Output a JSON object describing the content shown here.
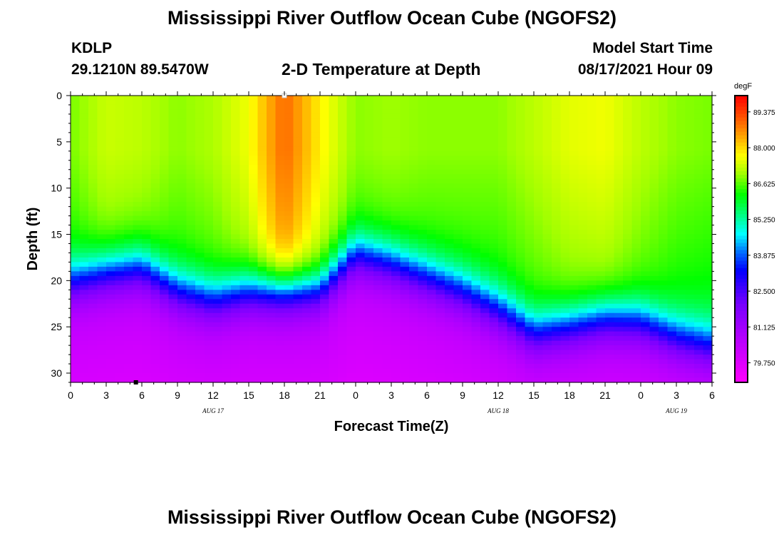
{
  "header": {
    "title_top": "Mississippi River Outflow Ocean Cube (NGOFS2)",
    "title_bottom": "Mississippi River Outflow Ocean Cube (NGOFS2)",
    "station_id": "KDLP",
    "station_coords": "29.1210N  89.5470W",
    "subtitle": "2-D Temperature at Depth",
    "model_start_label": "Model Start Time",
    "model_start_value": "08/17/2021 Hour 09"
  },
  "chart_data": {
    "type": "heatmap",
    "title": "2-D Temperature at Depth",
    "xlabel": "Forecast Time(Z)",
    "ylabel": "Depth (ft)",
    "xlim": [
      0,
      54
    ],
    "ylim": [
      0,
      31
    ],
    "x_tick_values": [
      0,
      3,
      6,
      9,
      12,
      15,
      18,
      21,
      24,
      27,
      30,
      33,
      36,
      39,
      42,
      45,
      48,
      51,
      54
    ],
    "x_tick_labels": [
      "0",
      "3",
      "6",
      "9",
      "12",
      "15",
      "18",
      "21",
      "0",
      "3",
      "6",
      "9",
      "12",
      "15",
      "18",
      "21",
      "0",
      "3",
      "6"
    ],
    "y_tick_values": [
      0,
      5,
      10,
      15,
      20,
      25,
      30
    ],
    "y_tick_labels": [
      "0",
      "5",
      "10",
      "15",
      "20",
      "25",
      "30"
    ],
    "date_labels": [
      {
        "x": 12,
        "text": "AUG 17"
      },
      {
        "x": 36,
        "text": "AUG 18"
      },
      {
        "x": 51,
        "text": "AUG 19"
      }
    ],
    "colorbar": {
      "unit": "degF",
      "min": 79.0,
      "max": 90.0,
      "tick_values": [
        89.375,
        88.0,
        86.625,
        85.25,
        83.875,
        82.5,
        81.125,
        79.75
      ],
      "tick_labels": [
        "89.375",
        "88.000",
        "86.625",
        "85.250",
        "83.875",
        "82.500",
        "81.125",
        "79.750"
      ]
    },
    "field_estimate": {
      "description": "approximate temperature (degF) per forecast hour; surface_temp is the near-surface value, thermocline_depth is depth (ft) where temperature falls through ~84 degF",
      "time": [
        0,
        3,
        6,
        9,
        12,
        15,
        18,
        21,
        24,
        27,
        30,
        33,
        36,
        39,
        42,
        45,
        48,
        51,
        54
      ],
      "surface_temp": [
        86.8,
        87.3,
        87.2,
        86.9,
        87.1,
        87.6,
        89.0,
        87.8,
        86.9,
        87.0,
        86.9,
        86.9,
        86.9,
        87.2,
        87.5,
        87.6,
        87.2,
        86.9,
        86.8
      ],
      "thermocline_depth": [
        20.0,
        19.0,
        18.5,
        21.0,
        22.0,
        21.0,
        21.0,
        20.8,
        17.0,
        18.0,
        19.5,
        21.0,
        23.0,
        25.5,
        24.8,
        24.0,
        24.3,
        26.0,
        27.0
      ],
      "deep_temp": 80.5
    },
    "markers": [
      {
        "x": 18,
        "depth": 0,
        "color": "#ffffff"
      },
      {
        "x": 5.5,
        "depth": 31,
        "color": "#000000"
      }
    ]
  }
}
